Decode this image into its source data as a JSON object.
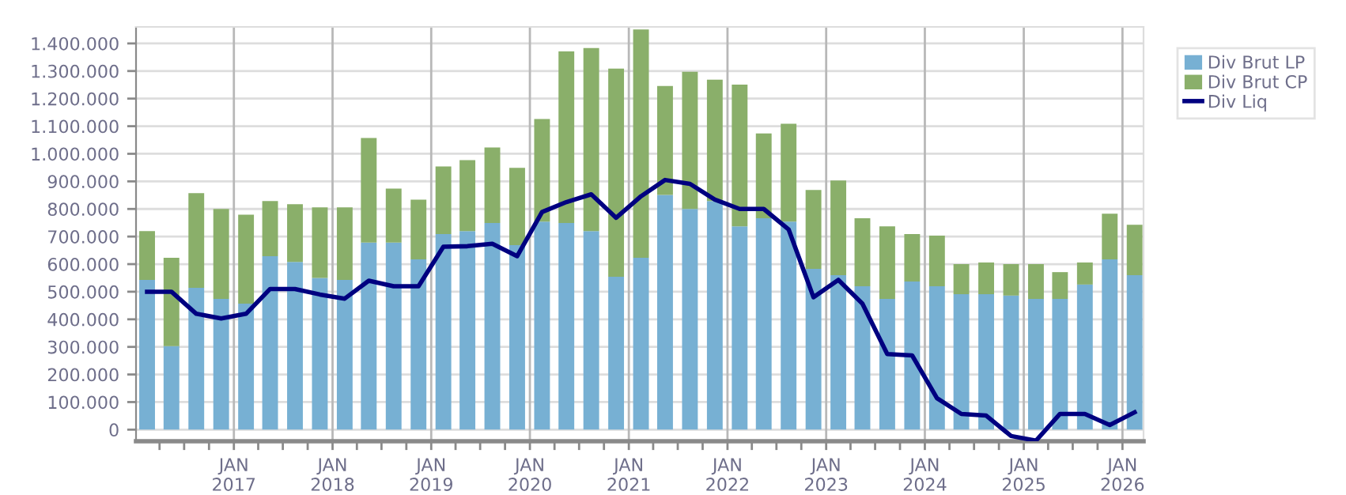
{
  "chart_data": {
    "type": "bar",
    "stacked": true,
    "x": [
      "2016-02-15",
      "2016-05-15",
      "2016-08-15",
      "2016-11-15",
      "2017-02-15",
      "2017-05-15",
      "2017-08-15",
      "2017-11-15",
      "2018-02-15",
      "2018-05-15",
      "2018-08-15",
      "2018-11-15",
      "2019-02-15",
      "2019-05-15",
      "2019-08-15",
      "2019-11-15",
      "2020-02-15",
      "2020-05-15",
      "2020-08-15",
      "2020-11-15",
      "2021-02-15",
      "2021-05-15",
      "2021-08-15",
      "2021-11-15",
      "2022-02-15",
      "2022-05-15",
      "2022-08-15",
      "2022-11-15",
      "2023-02-15",
      "2023-05-15",
      "2023-08-15",
      "2023-11-15",
      "2024-02-15",
      "2024-05-15",
      "2024-08-15",
      "2024-11-15",
      "2025-02-15",
      "2025-05-15",
      "2025-08-15",
      "2025-11-15",
      "2026-02-15"
    ],
    "series": [
      {
        "name": "Div Brut LP",
        "color": "#77b0d3",
        "values": [
          543000,
          303000,
          514000,
          474000,
          457000,
          629000,
          608000,
          550000,
          543000,
          678000,
          678000,
          617000,
          709000,
          720000,
          749000,
          669000,
          754000,
          749000,
          720000,
          554000,
          623000,
          851000,
          800000,
          829000,
          737000,
          766000,
          754000,
          583000,
          560000,
          520000,
          474000,
          537000,
          520000,
          491000,
          491000,
          486000,
          474000,
          474000,
          526000,
          617000,
          560000
        ]
      },
      {
        "name": "Div Brut CP",
        "color": "#8aaf6a",
        "values": [
          177000,
          320000,
          343000,
          326000,
          322000,
          200000,
          209000,
          256000,
          263000,
          379000,
          196000,
          217000,
          245000,
          257000,
          274000,
          280000,
          372000,
          622000,
          663000,
          755000,
          828000,
          395000,
          497000,
          440000,
          514000,
          308000,
          355000,
          286000,
          343000,
          246000,
          263000,
          172000,
          183000,
          109000,
          115000,
          114000,
          126000,
          97000,
          80000,
          166000,
          183000
        ]
      },
      {
        "name": "Div Liq",
        "type": "line",
        "color": "#000080",
        "line_style": "solid",
        "marker": "none",
        "values": [
          500000,
          500000,
          420000,
          403000,
          420000,
          510000,
          510000,
          490000,
          475000,
          540000,
          520000,
          520000,
          663000,
          665000,
          674000,
          629000,
          789000,
          825000,
          853000,
          768000,
          846000,
          905000,
          891000,
          834000,
          800000,
          800000,
          726000,
          480000,
          543000,
          457000,
          274000,
          269000,
          114000,
          57000,
          51000,
          -23000,
          -40000,
          57000,
          57000,
          17000,
          63000
        ]
      }
    ],
    "xlim": [
      "2016-01-05",
      "2026-03-20"
    ],
    "xticks": [
      {
        "value": "2016-04-01",
        "label": null
      },
      {
        "value": "2016-07-01",
        "label": null
      },
      {
        "value": "2016-10-01",
        "label": null
      },
      {
        "value": "2017-01-01",
        "label": "JAN\n2017"
      },
      {
        "value": "2017-04-01",
        "label": null
      },
      {
        "value": "2017-07-01",
        "label": null
      },
      {
        "value": "2017-10-01",
        "label": null
      },
      {
        "value": "2018-01-01",
        "label": "JAN\n2018"
      },
      {
        "value": "2018-04-01",
        "label": null
      },
      {
        "value": "2018-07-01",
        "label": null
      },
      {
        "value": "2018-10-01",
        "label": null
      },
      {
        "value": "2019-01-01",
        "label": "JAN\n2019"
      },
      {
        "value": "2019-04-01",
        "label": null
      },
      {
        "value": "2019-07-01",
        "label": null
      },
      {
        "value": "2019-10-01",
        "label": null
      },
      {
        "value": "2020-01-01",
        "label": "JAN\n2020"
      },
      {
        "value": "2020-04-01",
        "label": null
      },
      {
        "value": "2020-07-01",
        "label": null
      },
      {
        "value": "2020-10-01",
        "label": null
      },
      {
        "value": "2021-01-01",
        "label": "JAN\n2021"
      },
      {
        "value": "2021-04-01",
        "label": null
      },
      {
        "value": "2021-07-01",
        "label": null
      },
      {
        "value": "2021-10-01",
        "label": null
      },
      {
        "value": "2022-01-01",
        "label": "JAN\n2022"
      },
      {
        "value": "2022-04-01",
        "label": null
      },
      {
        "value": "2022-07-01",
        "label": null
      },
      {
        "value": "2022-10-01",
        "label": null
      },
      {
        "value": "2023-01-01",
        "label": "JAN\n2023"
      },
      {
        "value": "2023-04-01",
        "label": null
      },
      {
        "value": "2023-07-01",
        "label": null
      },
      {
        "value": "2023-10-01",
        "label": null
      },
      {
        "value": "2024-01-01",
        "label": "JAN\n2024"
      },
      {
        "value": "2024-04-01",
        "label": null
      },
      {
        "value": "2024-07-01",
        "label": null
      },
      {
        "value": "2024-10-01",
        "label": null
      },
      {
        "value": "2025-01-01",
        "label": "JAN\n2025"
      },
      {
        "value": "2025-04-01",
        "label": null
      },
      {
        "value": "2025-07-01",
        "label": null
      },
      {
        "value": "2025-10-01",
        "label": null
      },
      {
        "value": "2026-01-01",
        "label": "JAN\n2026"
      }
    ],
    "ylim": [
      -42000,
      1460000
    ],
    "yticks": [
      0,
      {
        "value": 100000,
        "label": "100.000"
      },
      {
        "value": 200000,
        "label": "200.000"
      },
      {
        "value": 300000,
        "label": "300.000"
      },
      {
        "value": 400000,
        "label": "400.000"
      },
      {
        "value": 500000,
        "label": "500.000"
      },
      {
        "value": 600000,
        "label": "600.000"
      },
      {
        "value": 700000,
        "label": "700.000"
      },
      {
        "value": 800000,
        "label": "800.000"
      },
      {
        "value": 900000,
        "label": "900.000"
      },
      {
        "value": 1000000,
        "label": "1.000.000"
      },
      {
        "value": 1100000,
        "label": "1.100.000"
      },
      {
        "value": 1200000,
        "label": "1.200.000"
      },
      {
        "value": 1300000,
        "label": "1.300.000"
      },
      {
        "value": 1400000,
        "label": "1.400.000"
      }
    ],
    "grid": true,
    "legend": "top right"
  }
}
